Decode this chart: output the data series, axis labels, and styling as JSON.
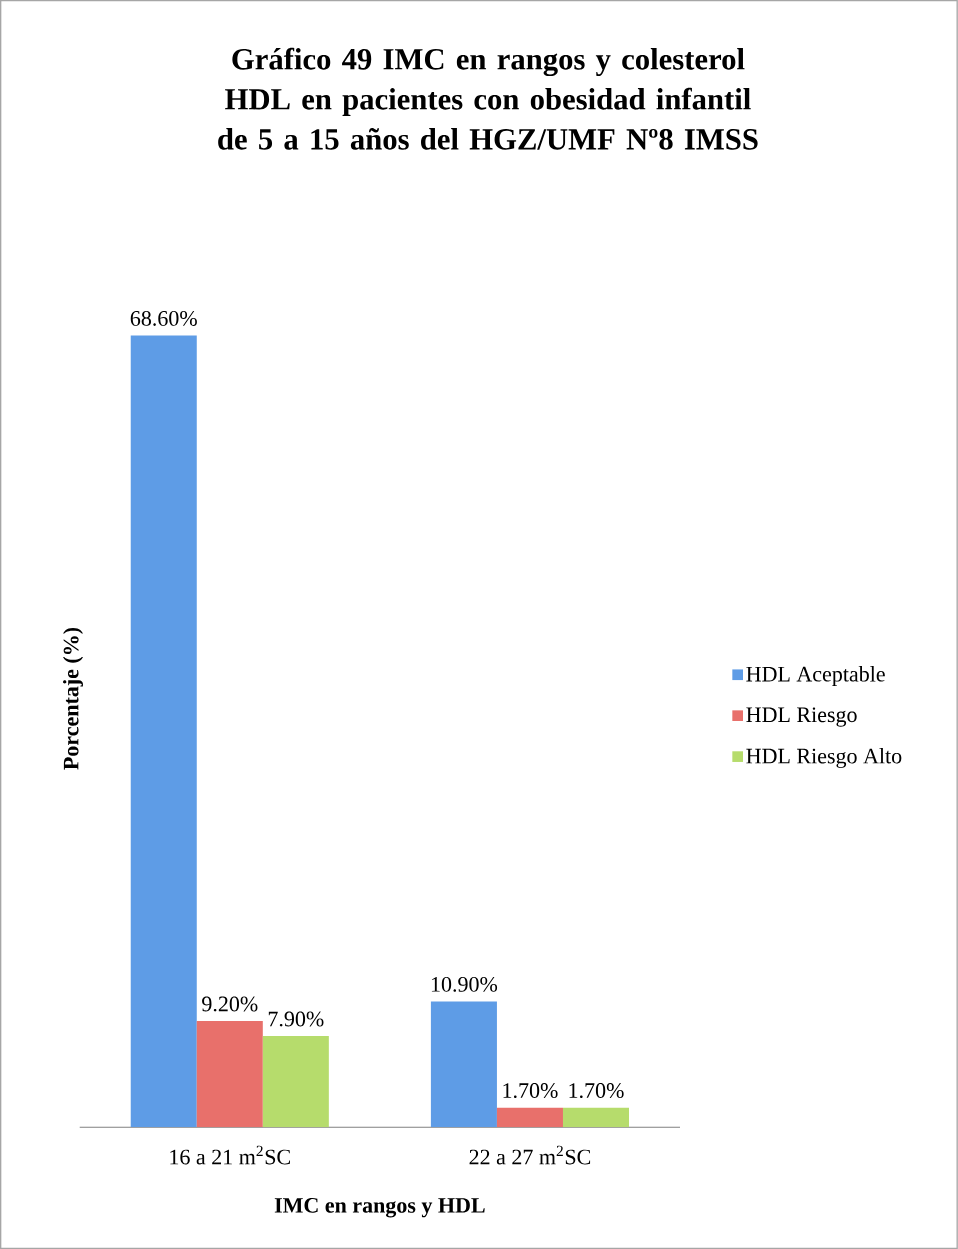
{
  "chart_data": {
    "type": "bar",
    "title": "Gráfico 49 IMC en rangos y colesterol HDL en pacientes con obesidad infantil de 5 a 15 años del HGZ/UMF Nº8 IMSS",
    "xlabel": "IMC en rangos y HDL",
    "ylabel": "Porcentaje (%)",
    "categories": [
      "16 a 21 m$^{2}$SC",
      "22 a 27 m$^{2}$SC"
    ],
    "series": [
      {
        "name": "HDL Aceptable",
        "color": "#5e9ce6",
        "values": [
          68.6,
          10.9
        ],
        "value_labels": [
          "68.60%",
          "10.90%"
        ]
      },
      {
        "name": "HDL Riesgo",
        "color": "#e8706b",
        "values": [
          9.2,
          1.7
        ],
        "value_labels": [
          "9.20%",
          "1.70%"
        ]
      },
      {
        "name": "HDL Riesgo Alto",
        "color": "#b6dc6c",
        "values": [
          7.9,
          1.7
        ],
        "value_labels": [
          "7.90%",
          "1.70%"
        ]
      }
    ],
    "legend": "right"
  }
}
